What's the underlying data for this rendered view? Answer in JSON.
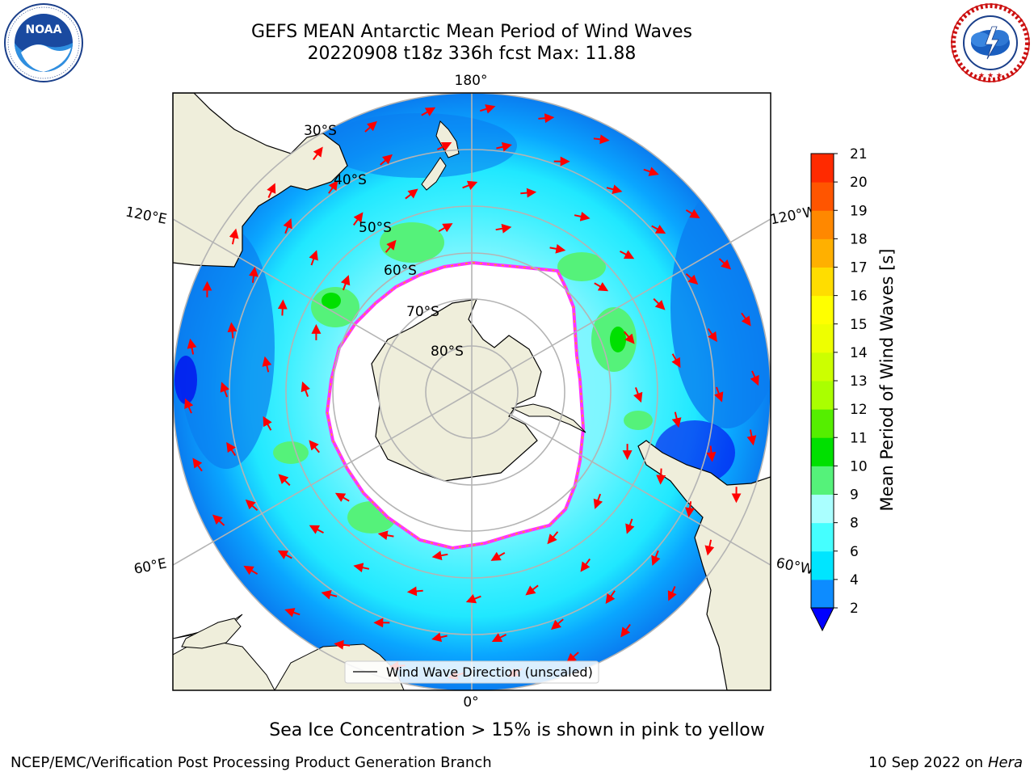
{
  "header": {
    "title_line1": "GEFS MEAN Antarctic Mean Period of Wind Waves",
    "title_line2": "20220908 t18z 336h fcst   Max: 11.88"
  },
  "logos": {
    "left": {
      "icon": "noaa-logo",
      "text": "NOAA",
      "ring_text": "NATIONAL OCEANIC AND ATMOSPHERIC ADMINISTRATION · U.S. DEPARTMENT OF COMMERCE"
    },
    "right": {
      "icon": "national-weather-service-logo",
      "ring_text": "NATIONAL WEATHER SERVICE"
    }
  },
  "map": {
    "projection": "south-polar-stereographic",
    "longitude_labels": {
      "top": "180°",
      "bottom": "0°",
      "upper_left": "120°E",
      "upper_right": "120°W",
      "lower_left": "60°E",
      "lower_right": "60°W"
    },
    "latitude_labels": [
      "30°S",
      "40°S",
      "50°S",
      "60°S",
      "70°S",
      "80°S"
    ],
    "legend_label": "Wind Wave Direction (unscaled)",
    "colors": {
      "land": "#efeedb",
      "sea_ice_fill": "#ffffff",
      "sea_ice_edge": [
        "#ff33ff",
        "#ffaa00",
        "#ffee55"
      ],
      "arrow": "#ff0000",
      "coast": "#000000",
      "grid": "#b4b4b4"
    }
  },
  "colorbar": {
    "title": "Mean Period of Wind Waves [s]",
    "ticks": [
      "2",
      "4",
      "6",
      "8",
      "9",
      "10",
      "11",
      "12",
      "13",
      "14",
      "15",
      "16",
      "17",
      "18",
      "19",
      "20",
      "21"
    ],
    "colors": [
      "#0d8cff",
      "#00e5ff",
      "#45ffff",
      "#aaffff",
      "#55f27a",
      "#00e000",
      "#55ee00",
      "#aaff00",
      "#ccff00",
      "#eeff00",
      "#ffff00",
      "#ffdd00",
      "#ffb000",
      "#ff8800",
      "#ff5500",
      "#ff2a00",
      "#ff0000"
    ],
    "under_color": "#0000ff"
  },
  "chart_data": {
    "type": "heatmap",
    "title": "GEFS MEAN Antarctic Mean Period of Wind Waves",
    "subtitle": "20220908 t18z 336h fcst   Max: 11.88",
    "variable": "Mean Period of Wind Waves [s]",
    "max": 11.88,
    "color_levels": [
      2,
      4,
      6,
      8,
      9,
      10,
      11,
      12,
      13,
      14,
      15,
      16,
      17,
      18,
      19,
      20,
      21
    ],
    "overlay": "Wind Wave Direction (unscaled)"
  },
  "footnote": "Sea Ice Concentration > 15% is shown in pink to yellow",
  "footer": {
    "left": "NCEP/EMC/Verification Post Processing Product Generation Branch",
    "right_date": "10 Sep 2022 on",
    "right_machine": "Hera"
  }
}
